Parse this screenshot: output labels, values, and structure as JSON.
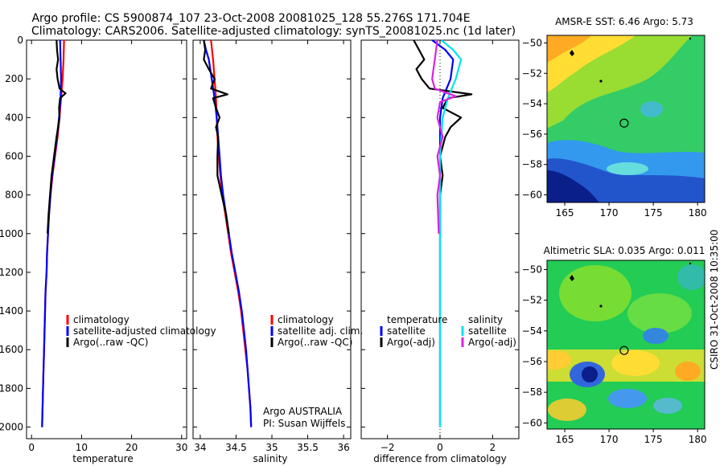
{
  "header": {
    "line1": "Argo profile: CS 5900874_107 23-Oct-2008 20081025_128 55.276S 171.704E",
    "line2": "Climatology: CARS2006. Satellite-adjusted climatology: synTS_20081025.nc (1d later)"
  },
  "side_label": "CSIRO 31-Oct-2008 10:35:00",
  "colors": {
    "climatology": "#ff0000",
    "satellite": "#0000ff",
    "argo": "#000000",
    "sat_salinity": "#00e5ee",
    "argo_salinity": "#dd22dd"
  },
  "chart_data": [
    {
      "id": "temperature-panel",
      "type": "line",
      "xlabel": "temperature",
      "ylabel": "",
      "xlim": [
        -1,
        31
      ],
      "ylim": [
        2060,
        0
      ],
      "xticks": [
        0,
        10,
        20,
        30
      ],
      "yticks": [
        0,
        200,
        400,
        600,
        800,
        1000,
        1200,
        1400,
        1600,
        1800,
        2000
      ],
      "legend": [
        "climatology",
        "satellite-adjusted climatology",
        "Argo(..raw -QC)"
      ],
      "series": [
        {
          "name": "climatology",
          "color": "#ff0000",
          "points": [
            [
              6.5,
              0
            ],
            [
              6.4,
              100
            ],
            [
              6.2,
              200
            ],
            [
              5.9,
              300
            ],
            [
              5.6,
              400
            ],
            [
              5.2,
              500
            ],
            [
              4.7,
              600
            ],
            [
              4.2,
              700
            ],
            [
              3.8,
              800
            ],
            [
              3.5,
              900
            ],
            [
              3.3,
              1000
            ],
            [
              3.1,
              1100
            ],
            [
              3.0,
              1200
            ],
            [
              2.8,
              1300
            ],
            [
              2.7,
              1400
            ],
            [
              2.6,
              1500
            ],
            [
              2.5,
              1600
            ],
            [
              2.4,
              1700
            ],
            [
              2.3,
              1800
            ],
            [
              2.2,
              1900
            ],
            [
              2.1,
              2000
            ]
          ]
        },
        {
          "name": "satellite-adjusted climatology",
          "color": "#0000ff",
          "points": [
            [
              5.7,
              0
            ],
            [
              5.8,
              100
            ],
            [
              5.9,
              200
            ],
            [
              5.8,
              300
            ],
            [
              5.5,
              400
            ],
            [
              5.1,
              500
            ],
            [
              4.6,
              600
            ],
            [
              4.1,
              700
            ],
            [
              3.8,
              800
            ],
            [
              3.5,
              900
            ],
            [
              3.3,
              1000
            ],
            [
              3.1,
              1100
            ],
            [
              3.0,
              1200
            ],
            [
              2.8,
              1300
            ],
            [
              2.7,
              1400
            ],
            [
              2.6,
              1500
            ],
            [
              2.5,
              1600
            ],
            [
              2.4,
              1700
            ],
            [
              2.3,
              1800
            ],
            [
              2.2,
              1900
            ],
            [
              2.1,
              2000
            ]
          ]
        },
        {
          "name": "Argo(..raw -QC)",
          "color": "#000000",
          "points": [
            [
              5.0,
              0
            ],
            [
              5.1,
              50
            ],
            [
              5.3,
              100
            ],
            [
              5.0,
              150
            ],
            [
              5.2,
              200
            ],
            [
              5.6,
              250
            ],
            [
              6.8,
              275
            ],
            [
              5.7,
              300
            ],
            [
              5.5,
              350
            ],
            [
              5.6,
              400
            ],
            [
              5.3,
              450
            ],
            [
              5.0,
              500
            ],
            [
              4.5,
              600
            ],
            [
              4.0,
              700
            ],
            [
              3.7,
              800
            ],
            [
              3.4,
              900
            ],
            [
              3.2,
              1000
            ]
          ]
        }
      ]
    },
    {
      "id": "salinity-panel",
      "type": "line",
      "xlabel": "salinity",
      "ylabel": "",
      "xlim": [
        33.9,
        36.1
      ],
      "ylim": [
        2060,
        0
      ],
      "xticks": [
        34,
        34.5,
        35,
        35.5,
        36
      ],
      "xticklabels": [
        "34",
        "34.5",
        "35",
        "35.5",
        "36"
      ],
      "yticks": [
        0,
        200,
        400,
        600,
        800,
        1000,
        1200,
        1400,
        1600,
        1800,
        2000
      ],
      "legend": [
        "climatology",
        "satellite adj. clim.",
        "Argo(..raw -QC)"
      ],
      "annotation": [
        "Argo AUSTRALIA",
        "PI: Susan Wijffels"
      ],
      "series": [
        {
          "name": "climatology",
          "color": "#ff0000",
          "points": [
            [
              34.15,
              0
            ],
            [
              34.18,
              100
            ],
            [
              34.2,
              200
            ],
            [
              34.22,
              300
            ],
            [
              34.23,
              400
            ],
            [
              34.24,
              500
            ],
            [
              34.26,
              600
            ],
            [
              34.28,
              700
            ],
            [
              34.31,
              800
            ],
            [
              34.35,
              900
            ],
            [
              34.39,
              1000
            ],
            [
              34.43,
              1100
            ],
            [
              34.48,
              1200
            ],
            [
              34.53,
              1300
            ],
            [
              34.57,
              1400
            ],
            [
              34.6,
              1500
            ],
            [
              34.63,
              1600
            ],
            [
              34.66,
              1700
            ],
            [
              34.68,
              1800
            ],
            [
              34.7,
              1900
            ],
            [
              34.71,
              2000
            ]
          ]
        },
        {
          "name": "satellite adj. clim.",
          "color": "#0000ff",
          "points": [
            [
              34.05,
              0
            ],
            [
              34.08,
              50
            ],
            [
              34.12,
              100
            ],
            [
              34.16,
              200
            ],
            [
              34.2,
              300
            ],
            [
              34.23,
              400
            ],
            [
              34.25,
              500
            ],
            [
              34.27,
              600
            ],
            [
              34.29,
              700
            ],
            [
              34.32,
              800
            ],
            [
              34.36,
              900
            ],
            [
              34.4,
              1000
            ],
            [
              34.44,
              1100
            ],
            [
              34.49,
              1200
            ],
            [
              34.54,
              1300
            ],
            [
              34.58,
              1400
            ],
            [
              34.61,
              1500
            ],
            [
              34.64,
              1600
            ],
            [
              34.66,
              1700
            ],
            [
              34.68,
              1800
            ],
            [
              34.7,
              1900
            ],
            [
              34.71,
              2000
            ]
          ]
        },
        {
          "name": "Argo(..raw -QC)",
          "color": "#000000",
          "points": [
            [
              34.05,
              0
            ],
            [
              34.07,
              50
            ],
            [
              34.05,
              100
            ],
            [
              34.12,
              150
            ],
            [
              34.2,
              200
            ],
            [
              34.15,
              250
            ],
            [
              34.38,
              280
            ],
            [
              34.18,
              300
            ],
            [
              34.22,
              350
            ],
            [
              34.27,
              400
            ],
            [
              34.22,
              450
            ],
            [
              34.25,
              500
            ],
            [
              34.24,
              600
            ],
            [
              34.24,
              700
            ],
            [
              34.3,
              800
            ],
            [
              34.36,
              900
            ],
            [
              34.4,
              1000
            ]
          ]
        }
      ]
    },
    {
      "id": "difference-panel",
      "type": "line",
      "xlabel": "difference from climatology",
      "ylabel": "",
      "xlim": [
        -3,
        3
      ],
      "ylim": [
        2060,
        0
      ],
      "xticks": [
        -2,
        0,
        2
      ],
      "yticks": [
        0,
        200,
        400,
        600,
        800,
        1000,
        1200,
        1400,
        1600,
        1800,
        2000
      ],
      "legend_left_title": "temperature",
      "legend_left": [
        "satellite",
        "Argo(-adj)"
      ],
      "legend_right_title": "salinity",
      "legend_right": [
        "satellite",
        "Argo(-adj)"
      ],
      "series": [
        {
          "name": "temperature satellite",
          "color": "#0000ff",
          "points": [
            [
              -0.3,
              0
            ],
            [
              0.2,
              50
            ],
            [
              0.5,
              100
            ],
            [
              0.4,
              200
            ],
            [
              0.1,
              300
            ],
            [
              0.0,
              400
            ],
            [
              0.0,
              600
            ],
            [
              0.0,
              1000
            ],
            [
              0.0,
              2000
            ]
          ]
        },
        {
          "name": "temperature Argo(-adj)",
          "color": "#000000",
          "points": [
            [
              -1.0,
              0
            ],
            [
              -0.8,
              50
            ],
            [
              -0.6,
              100
            ],
            [
              -0.9,
              150
            ],
            [
              -0.7,
              200
            ],
            [
              -0.4,
              250
            ],
            [
              1.2,
              280
            ],
            [
              0.3,
              300
            ],
            [
              0.1,
              350
            ],
            [
              0.8,
              400
            ],
            [
              0.4,
              450
            ],
            [
              0.2,
              500
            ],
            [
              0.0,
              600
            ],
            [
              0.1,
              700
            ],
            [
              0.0,
              800
            ],
            [
              0.0,
              1000
            ]
          ]
        },
        {
          "name": "salinity satellite",
          "color": "#00e5ee",
          "points": [
            [
              0.05,
              0
            ],
            [
              0.5,
              50
            ],
            [
              0.8,
              100
            ],
            [
              0.6,
              200
            ],
            [
              0.3,
              300
            ],
            [
              0.1,
              400
            ],
            [
              0.0,
              600
            ],
            [
              0.0,
              1000
            ],
            [
              0.0,
              2000
            ]
          ]
        },
        {
          "name": "salinity Argo(-adj)",
          "color": "#dd22dd",
          "points": [
            [
              -0.1,
              0
            ],
            [
              -0.2,
              100
            ],
            [
              -0.3,
              200
            ],
            [
              -0.2,
              250
            ],
            [
              0.6,
              290
            ],
            [
              0.0,
              320
            ],
            [
              -0.1,
              400
            ],
            [
              0.1,
              500
            ],
            [
              -0.1,
              600
            ],
            [
              0.0,
              700
            ],
            [
              -0.1,
              800
            ],
            [
              -0.05,
              1000
            ]
          ]
        }
      ]
    },
    {
      "id": "sst-map",
      "type": "heatmap",
      "title": "AMSR-E SST: 6.46 Argo: 5.73",
      "xlim": [
        163,
        181
      ],
      "ylim": [
        -61,
        -49
      ],
      "xticks": [
        165,
        170,
        175,
        180
      ],
      "yticks": [
        -50,
        -52,
        -54,
        -56,
        -58,
        -60
      ],
      "marker": {
        "lon": 171.704,
        "lat": -55.276
      }
    },
    {
      "id": "sla-map",
      "type": "heatmap",
      "title": "Altimetric SLA: 0.035 Argo: 0.011",
      "xlim": [
        163,
        181
      ],
      "ylim": [
        -61,
        -49
      ],
      "xticks": [
        165,
        170,
        175,
        180
      ],
      "yticks": [
        -50,
        -52,
        -54,
        -56,
        -58,
        -60
      ],
      "marker": {
        "lon": 171.704,
        "lat": -55.276
      }
    }
  ]
}
